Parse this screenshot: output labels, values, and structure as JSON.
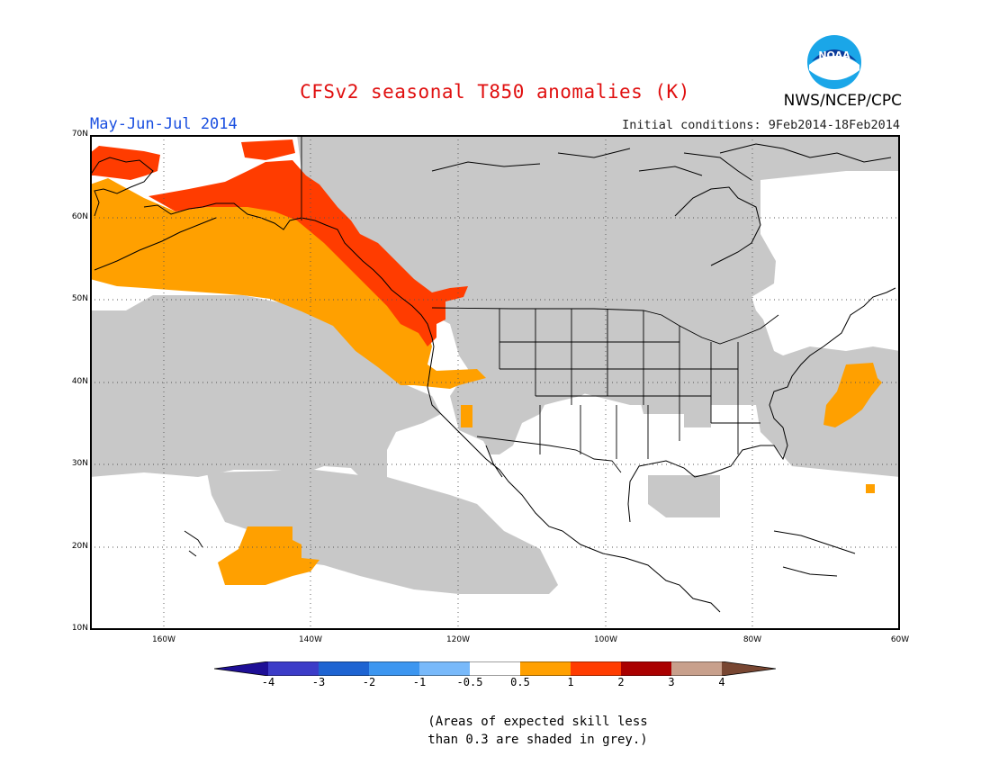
{
  "header": {
    "title": "CFSv2 seasonal T850 anomalies (K)",
    "season": "May-Jun-Jul 2014",
    "initial_conditions": "Initial conditions: 9Feb2014-18Feb2014",
    "agency": "NWS/NCEP/CPC",
    "logo_text": "NOAA"
  },
  "map": {
    "lat_labels": [
      "70N",
      "60N",
      "50N",
      "40N",
      "30N",
      "20N",
      "10N"
    ],
    "lon_labels": [
      "160W",
      "140W",
      "120W",
      "100W",
      "80W",
      "60W"
    ],
    "extent": {
      "lon_min": -170,
      "lon_max": -60,
      "lat_min": 10,
      "lat_max": 70
    },
    "grid": "dotted"
  },
  "colorbar": {
    "ticks": [
      "-4",
      "-3",
      "-2",
      "-1",
      "-0.5",
      "0.5",
      "1",
      "2",
      "3",
      "4"
    ],
    "colors": [
      "#1e0f96",
      "#3c3cc8",
      "#1e64d2",
      "#3c96f0",
      "#78b9fa",
      "#ffffff",
      "#ffa000",
      "#ff3c00",
      "#aa0000",
      "#c8a08c",
      "#784632"
    ]
  },
  "legend_colors": {
    "grey_low_skill": "#c8c8c8",
    "anomaly_0_5_to_1": "#ffa000",
    "anomaly_1_to_2": "#ff3c00"
  },
  "footnote": {
    "line1": "(Areas of expected skill less",
    "line2": "than 0.3 are shaded in grey.)"
  }
}
